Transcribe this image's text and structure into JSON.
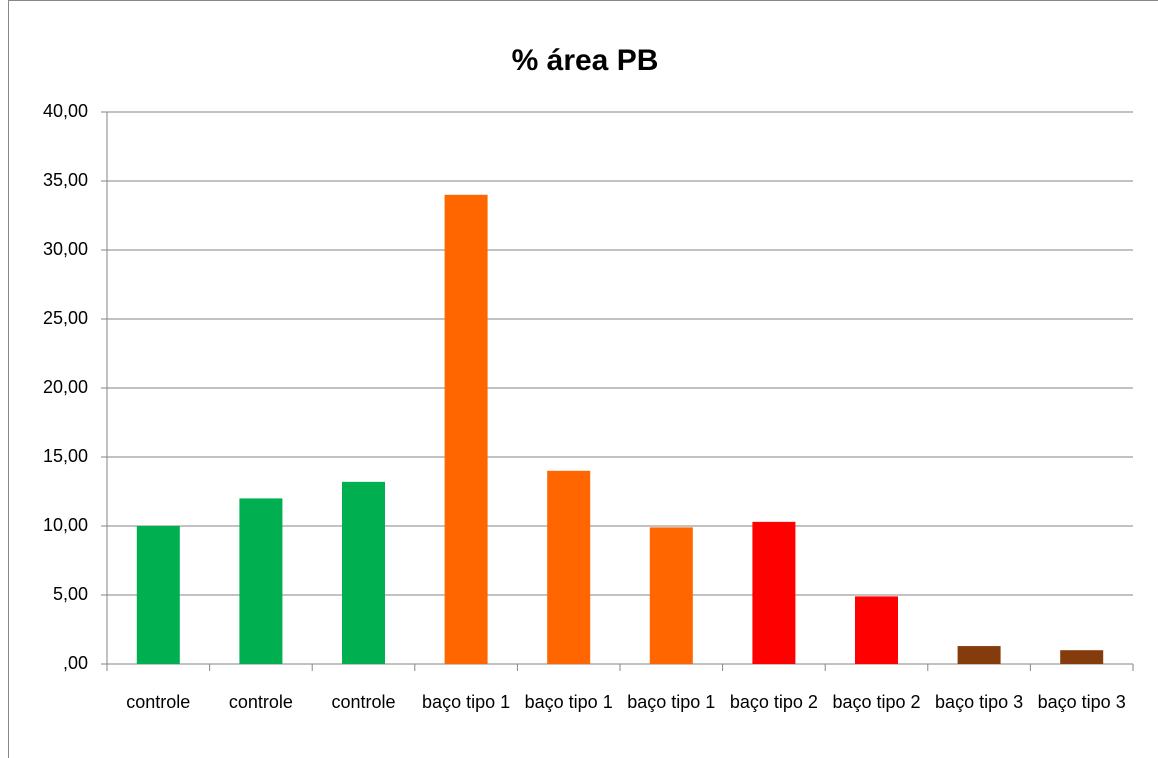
{
  "chart_data": {
    "type": "bar",
    "title": "% área PB",
    "categories": [
      "controle",
      "controle",
      "controle",
      "baço tipo 1",
      "baço tipo 1",
      "baço tipo 1",
      "baço tipo 2",
      "baço tipo 2",
      "baço tipo 3",
      "baço tipo 3"
    ],
    "values": [
      10.0,
      12.0,
      13.2,
      34.0,
      14.0,
      9.9,
      10.3,
      4.9,
      1.3,
      1.0
    ],
    "colors": [
      "#00b050",
      "#00b050",
      "#00b050",
      "#ff6600",
      "#ff6600",
      "#ff6600",
      "#ff0000",
      "#ff0000",
      "#843c0c",
      "#843c0c"
    ],
    "ylim": [
      0,
      40
    ],
    "yticks": [
      {
        "value": 0,
        "label": ",00"
      },
      {
        "value": 5,
        "label": "5,00"
      },
      {
        "value": 10,
        "label": "10,00"
      },
      {
        "value": 15,
        "label": "15,00"
      },
      {
        "value": 20,
        "label": "20,00"
      },
      {
        "value": 25,
        "label": "25,00"
      },
      {
        "value": 30,
        "label": "30,00"
      },
      {
        "value": 35,
        "label": "35,00"
      },
      {
        "value": 40,
        "label": "40,00"
      }
    ],
    "grid": true
  }
}
